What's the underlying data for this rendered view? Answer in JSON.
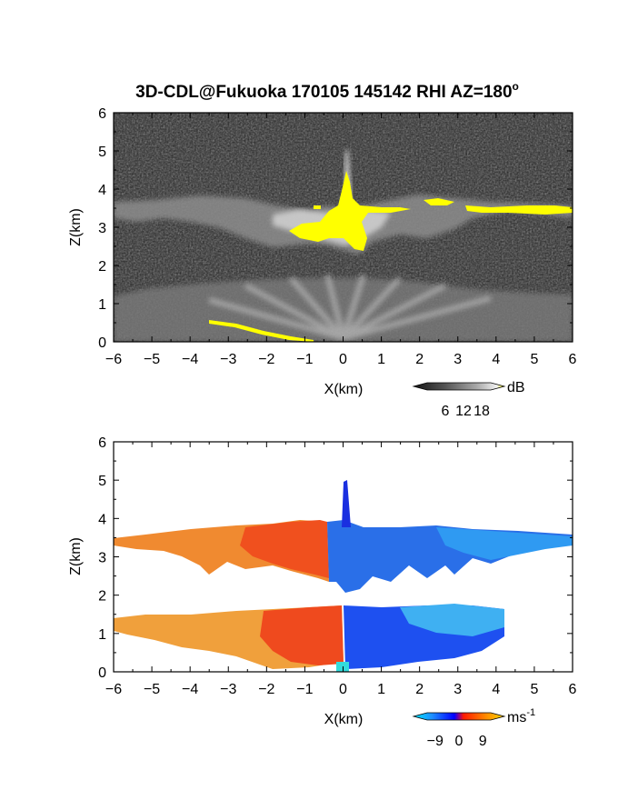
{
  "title": "3D-CDL@Fukuoka 170105 145142 RHI AZ=180",
  "title_superscript": "o",
  "chart_data": [
    {
      "type": "heatmap",
      "panel": "reflectivity",
      "xlabel": "X(km)",
      "ylabel": "Z(km)",
      "xlim": [
        -6,
        6
      ],
      "ylim": [
        0,
        6
      ],
      "xticks": [
        "-6",
        "-5",
        "-4",
        "-3",
        "-2",
        "-1",
        "0",
        "1",
        "2",
        "3",
        "4",
        "5",
        "6"
      ],
      "yticks": [
        "0",
        "1",
        "2",
        "3",
        "4",
        "5",
        "6"
      ],
      "colorbar": {
        "unit": "dB",
        "ticks": [
          "6",
          "12",
          "18"
        ],
        "range": [
          0,
          21
        ],
        "colormap": "grayscale-to-yellow",
        "saturation_color": "#ffff00"
      },
      "layers": [
        {
          "feature": "upper cloud layer",
          "x_range": [
            -6,
            6
          ],
          "z_range": [
            2.3,
            3.6
          ]
        },
        {
          "feature": "strong echo core near X=0",
          "x_range": [
            -0.7,
            0.7
          ],
          "z_range": [
            2.4,
            4.4
          ],
          "level_dB": 18
        },
        {
          "feature": "strong echo band",
          "x_range": [
            2.2,
            6
          ],
          "z_range": [
            3.4,
            3.7
          ],
          "level_dB": 18
        },
        {
          "feature": "lower layer",
          "x_range": [
            -6,
            6
          ],
          "z_range": [
            0,
            1.4
          ]
        },
        {
          "feature": "strong echo near ground",
          "x_range": [
            -3.5,
            -0.6
          ],
          "z_range": [
            0,
            0.5
          ],
          "level_dB": 18
        }
      ]
    },
    {
      "type": "heatmap",
      "panel": "doppler velocity",
      "xlabel": "X(km)",
      "ylabel": "Z(km)",
      "xlim": [
        -6,
        6
      ],
      "ylim": [
        0,
        6
      ],
      "xticks": [
        "-6",
        "-5",
        "-4",
        "-3",
        "-2",
        "-1",
        "0",
        "1",
        "2",
        "3",
        "4",
        "5",
        "6"
      ],
      "yticks": [
        "0",
        "1",
        "2",
        "3",
        "4",
        "5",
        "6"
      ],
      "colorbar": {
        "unit": "ms",
        "unit_superscript": "-1",
        "ticks": [
          "-9",
          "0",
          "9"
        ],
        "range": [
          -12,
          12
        ],
        "colormap": "cyan-blue-red-yellow"
      },
      "layers": [
        {
          "feature": "upper layer, receding",
          "x_range": [
            -6,
            -0.5
          ],
          "z_range": [
            2.3,
            3.7
          ],
          "velocity_ms": 6
        },
        {
          "feature": "upper layer, approaching",
          "x_range": [
            -0.5,
            6
          ],
          "z_range": [
            2.1,
            3.9
          ],
          "velocity_ms": -6
        },
        {
          "feature": "tower near X=0",
          "x_range": [
            -0.1,
            0.3
          ],
          "z_range": [
            3.9,
            5
          ],
          "velocity_ms": -8
        },
        {
          "feature": "lower layer, receding",
          "x_range": [
            -6,
            0
          ],
          "z_range": [
            0,
            1.6
          ],
          "velocity_ms": 6
        },
        {
          "feature": "lower layer, approaching",
          "x_range": [
            0,
            5.5
          ],
          "z_range": [
            0,
            1.5
          ],
          "velocity_ms": -6
        }
      ]
    }
  ]
}
